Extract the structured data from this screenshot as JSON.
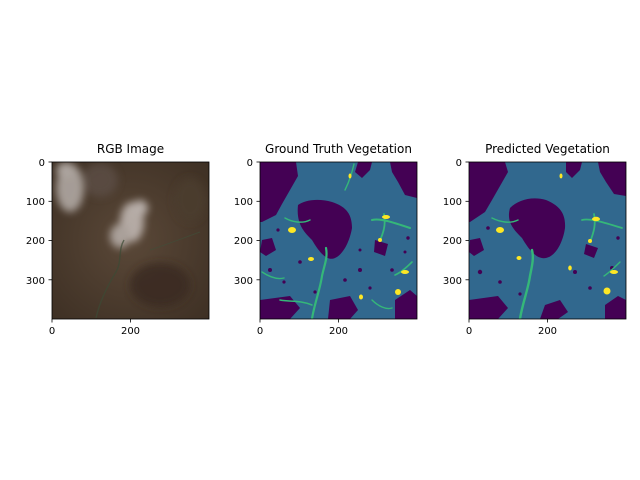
{
  "chart_data": [
    {
      "type": "heatmap",
      "title": "RGB Image",
      "image_kind": "rgb-photo",
      "x_ticks": [
        "0",
        "200"
      ],
      "y_ticks": [
        "0",
        "100",
        "200",
        "300"
      ],
      "x_tick_values": [
        0,
        200
      ],
      "y_tick_values": [
        0,
        100,
        200,
        300
      ],
      "extent": [
        0,
        400
      ],
      "y_inverted": true,
      "grid": false
    },
    {
      "type": "heatmap",
      "title": "Ground Truth Vegetation",
      "image_kind": "viridis-class-map",
      "x_ticks": [
        "0",
        "200"
      ],
      "y_ticks": [
        "0",
        "100",
        "200",
        "300"
      ],
      "x_tick_values": [
        0,
        200
      ],
      "y_tick_values": [
        0,
        100,
        200,
        300
      ],
      "extent": [
        0,
        400
      ],
      "y_inverted": true,
      "grid": false
    },
    {
      "type": "heatmap",
      "title": "Predicted Vegetation",
      "image_kind": "viridis-class-map",
      "x_ticks": [
        "0",
        "200"
      ],
      "y_ticks": [
        "0",
        "100",
        "200",
        "300"
      ],
      "x_tick_values": [
        0,
        200
      ],
      "y_tick_values": [
        0,
        100,
        200,
        300
      ],
      "extent": [
        0,
        400
      ],
      "y_inverted": true,
      "grid": false
    }
  ],
  "colors": {
    "class_0": "#440154",
    "class_1": "#31688e",
    "class_2": "#35b779",
    "class_3": "#fde725",
    "rgb_base": "#4a3a2c",
    "rgb_cloud": "#b8b0ab"
  }
}
